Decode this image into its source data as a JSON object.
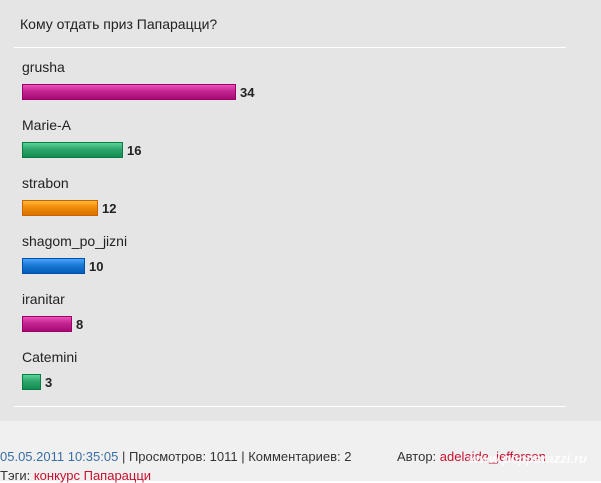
{
  "poll": {
    "title": "Кому отдать приз Папарацци?"
  },
  "chart_data": {
    "type": "bar",
    "orientation": "horizontal",
    "title": "Кому отдать приз Папарацци?",
    "categories": [
      "grusha",
      "Marie-A",
      "strabon",
      "shagom_po_jizni",
      "iranitar",
      "Catemini"
    ],
    "values": [
      34,
      16,
      12,
      10,
      8,
      3
    ],
    "colors": [
      "#c2248f",
      "#2ea56b",
      "#f08c0a",
      "#1a78d2",
      "#c2248f",
      "#2ea56b"
    ],
    "xlim": [
      0,
      34
    ],
    "grid": false,
    "legend": "none"
  },
  "footer": {
    "date": "05.05.2011 10:35:05",
    "views_label": "| Просмотров: 1011 | Комментариев: 2",
    "author_label": "Автор:",
    "author_name": "adelaide_jefferson",
    "tags_label": "Тэги:",
    "tags": "конкурс Папарацци",
    "watermark": "www.popparazzi.ru"
  }
}
